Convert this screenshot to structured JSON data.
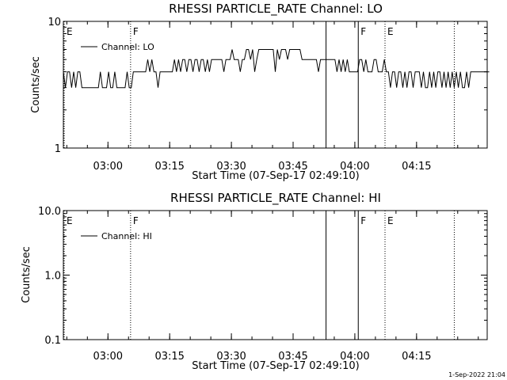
{
  "chart_data": [
    {
      "type": "line",
      "title": "RHESSI PARTICLE_RATE Channel: LO",
      "xlabel": "Start Time (07-Sep-17 02:49:10)",
      "ylabel": "Counts/sec",
      "y_scale": "log",
      "ylim": [
        1,
        10
      ],
      "yticks": [
        "1",
        "10"
      ],
      "x_range": [
        "02:49:10",
        "04:32:10"
      ],
      "xticks": [
        "03:00",
        "03:15",
        "03:30",
        "03:45",
        "04:00",
        "04:15"
      ],
      "legend": {
        "entries": [
          "Channel: LO"
        ],
        "placement": "top-left"
      },
      "grid": false,
      "series": [
        {
          "name": "Channel: LO",
          "x_start": "02:49:10",
          "x_step_minutes": 0.5,
          "values": [
            4,
            3,
            4,
            4,
            3,
            4,
            3,
            4,
            4,
            3,
            3,
            3,
            3,
            3,
            3,
            3,
            3,
            3,
            4,
            3,
            3,
            3,
            4,
            3,
            3,
            4,
            3,
            3,
            3,
            3,
            3,
            4,
            3,
            3,
            4,
            4,
            4,
            4,
            4,
            4,
            4,
            5,
            4,
            5,
            4,
            4,
            3,
            4,
            4,
            4,
            4,
            4,
            4,
            4,
            5,
            4,
            5,
            4,
            5,
            5,
            4,
            5,
            5,
            4,
            5,
            5,
            4,
            5,
            5,
            4,
            5,
            4,
            5,
            5,
            5,
            5,
            5,
            5,
            4,
            5,
            5,
            5,
            6,
            5,
            5,
            5,
            4,
            5,
            5,
            6,
            6,
            5,
            6,
            4,
            5,
            6,
            6,
            6,
            6,
            6,
            6,
            6,
            6,
            4,
            6,
            5,
            6,
            6,
            6,
            5,
            6,
            6,
            6,
            6,
            6,
            6,
            5,
            5,
            5,
            5,
            5,
            5,
            5,
            5,
            4,
            5,
            5,
            5,
            5,
            5,
            5,
            5,
            5,
            4,
            5,
            4,
            5,
            4,
            5,
            4,
            4,
            4,
            4,
            4,
            5,
            5,
            4,
            5,
            4,
            4,
            4,
            5,
            5,
            4,
            4,
            4,
            5,
            4,
            4,
            3,
            4,
            4,
            3,
            4,
            4,
            3,
            4,
            3,
            4,
            4,
            3,
            4,
            4,
            4,
            3,
            4,
            3,
            3,
            4,
            3,
            4,
            3,
            4,
            4,
            3,
            4,
            3,
            4,
            3,
            4,
            3,
            4,
            3,
            4,
            3,
            3,
            4,
            3,
            4,
            4,
            4,
            4,
            4,
            4,
            4,
            4,
            4,
            4
          ]
        }
      ],
      "markers": [
        {
          "time": "02:49:10",
          "label": "E",
          "style": "dotted"
        },
        {
          "time": "03:05:30",
          "label": "F",
          "style": "dotted"
        },
        {
          "time": "03:53:00",
          "label": "",
          "style": "solid"
        },
        {
          "time": "04:00:50",
          "label": "F",
          "style": "solid"
        },
        {
          "time": "04:07:20",
          "label": "E",
          "style": "dotted"
        },
        {
          "time": "04:24:10",
          "label": "",
          "style": "dotted"
        }
      ]
    },
    {
      "type": "line",
      "title": "RHESSI PARTICLE_RATE Channel: HI",
      "xlabel": "Start Time (07-Sep-17 02:49:10)",
      "ylabel": "Counts/sec",
      "y_scale": "log",
      "ylim": [
        0.1,
        10
      ],
      "yticks": [
        "0.1",
        "1.0",
        "10.0"
      ],
      "x_range": [
        "02:49:10",
        "04:32:10"
      ],
      "xticks": [
        "03:00",
        "03:15",
        "03:30",
        "03:45",
        "04:00",
        "04:15"
      ],
      "legend": {
        "entries": [
          "Channel: HI"
        ],
        "placement": "top-left"
      },
      "grid": false,
      "series": [
        {
          "name": "Channel: HI",
          "values": []
        }
      ],
      "markers": [
        {
          "time": "02:49:10",
          "label": "E",
          "style": "dotted"
        },
        {
          "time": "03:05:30",
          "label": "F",
          "style": "dotted"
        },
        {
          "time": "03:53:00",
          "label": "",
          "style": "solid"
        },
        {
          "time": "04:00:50",
          "label": "F",
          "style": "solid"
        },
        {
          "time": "04:07:20",
          "label": "E",
          "style": "dotted"
        },
        {
          "time": "04:24:10",
          "label": "",
          "style": "dotted"
        }
      ]
    }
  ],
  "footer": {
    "timestamp": "1-Sep-2022 21:04"
  }
}
